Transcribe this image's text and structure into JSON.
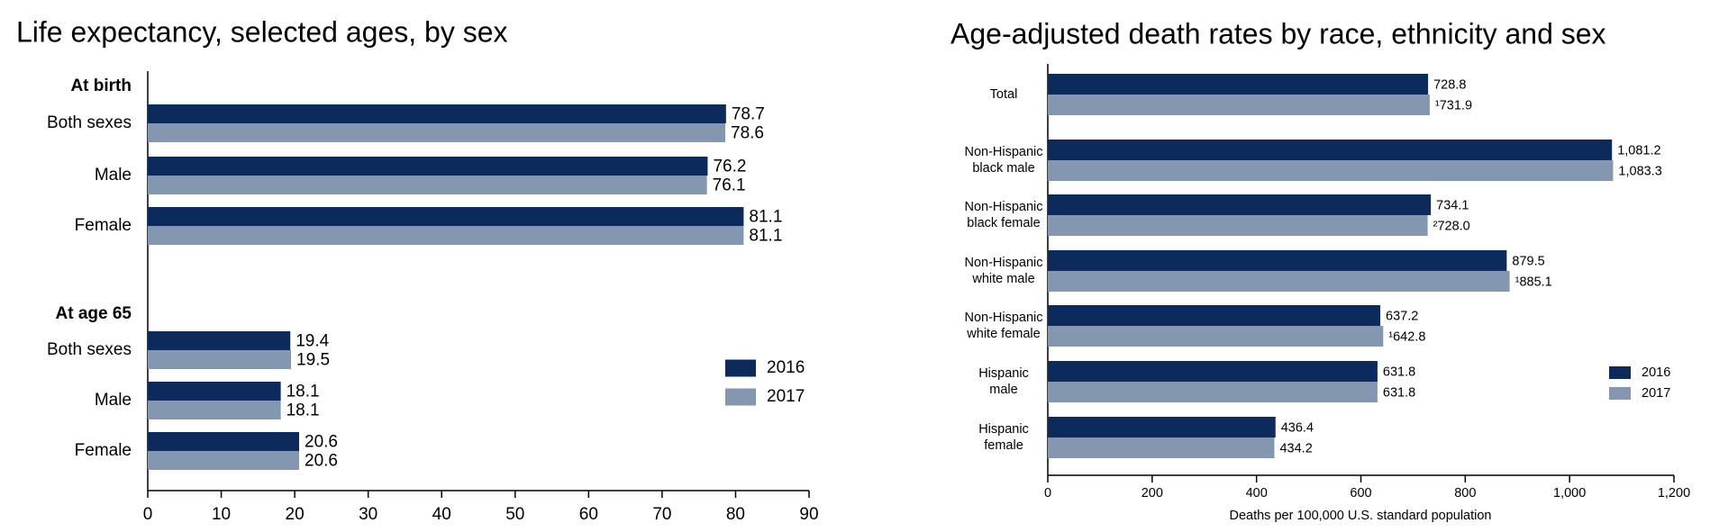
{
  "chart_data": [
    {
      "type": "hbar",
      "title": "Life expectancy, selected ages, by sex",
      "groups": [
        {
          "name": "At birth",
          "categories": [
            "Both sexes",
            "Male",
            "Female"
          ]
        },
        {
          "name": "At age 65",
          "categories": [
            "Both sexes",
            "Male",
            "Female"
          ]
        }
      ],
      "series": [
        {
          "name": "2016",
          "color": "#0c2a5b",
          "values": [
            78.7,
            76.2,
            81.1,
            19.4,
            18.1,
            20.6
          ]
        },
        {
          "name": "2017",
          "color": "#8497b0",
          "values": [
            78.6,
            76.1,
            81.1,
            19.5,
            18.1,
            20.6
          ]
        }
      ],
      "xlim": [
        0,
        90
      ],
      "xticks": [
        0,
        10,
        20,
        30,
        40,
        50,
        60,
        70,
        80,
        90
      ],
      "legend": "right"
    },
    {
      "type": "hbar",
      "title": "Age-adjusted death rates by race, ethnicity and sex",
      "categories": [
        "Total",
        "Non-Hispanic black male",
        "Non-Hispanic black female",
        "Non-Hispanic white male",
        "Non-Hispanic white female",
        "Hispanic male",
        "Hispanic female"
      ],
      "series": [
        {
          "name": "2016",
          "color": "#0c2a5b",
          "values": [
            728.8,
            1081.2,
            734.1,
            879.5,
            637.2,
            631.8,
            436.4
          ],
          "value_labels": [
            "728.8",
            "1,081.2",
            "734.1",
            "879.5",
            "637.2",
            "631.8",
            "436.4"
          ]
        },
        {
          "name": "2017",
          "color": "#8497b0",
          "values": [
            731.9,
            1083.3,
            728.0,
            885.1,
            642.8,
            631.8,
            434.2
          ],
          "value_labels": [
            "¹731.9",
            "1,083.3",
            "²728.0",
            "¹885.1",
            "¹642.8",
            "631.8",
            "434.2"
          ]
        }
      ],
      "xlim": [
        0,
        1200
      ],
      "xticks": [
        0,
        200,
        400,
        600,
        800,
        {
          "value": 1000,
          "label": "1,000"
        },
        {
          "value": 1200,
          "label": "1,200"
        }
      ],
      "xlabel": "Deaths per 100,000 U.S. standard population",
      "legend": "right"
    }
  ]
}
